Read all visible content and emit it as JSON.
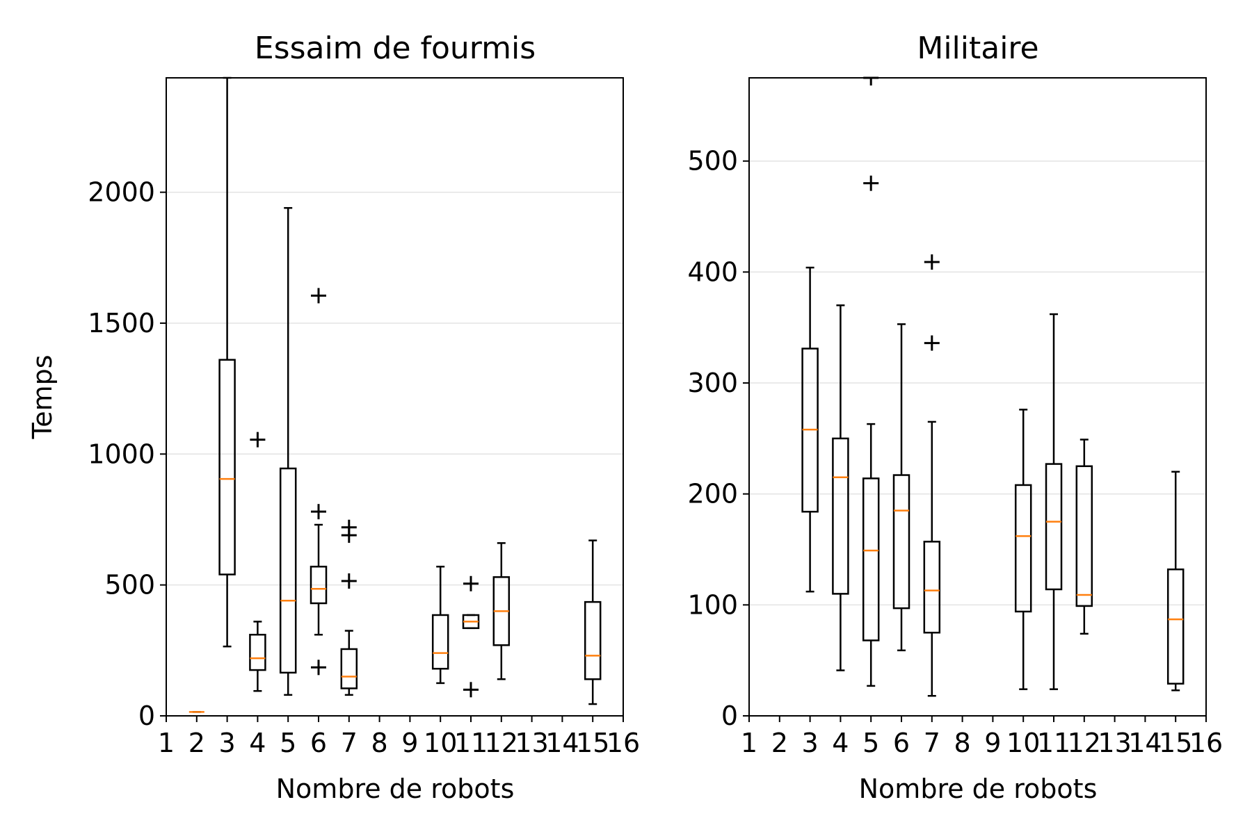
{
  "chart_data": [
    {
      "type": "box",
      "title": "Essaim de fourmis",
      "xlabel": "Nombre de robots",
      "ylabel": "Temps",
      "xlim": [
        1,
        16
      ],
      "ylim": [
        0,
        2437
      ],
      "xticks": [
        "1",
        "2",
        "3",
        "4",
        "5",
        "6",
        "7",
        "8",
        "9",
        "10",
        "11",
        "12",
        "13",
        "14",
        "15",
        "16"
      ],
      "yticks": [
        0,
        500,
        1000,
        1500,
        2000
      ],
      "grid": "y",
      "boxes": [
        {
          "x": 2,
          "q1": 15,
          "median": 15,
          "q3": 15,
          "whislo": 15,
          "whishi": 15,
          "fliers": []
        },
        {
          "x": 3,
          "q1": 540,
          "median": 905,
          "q3": 1360,
          "whislo": 265,
          "whishi": 2437,
          "fliers": []
        },
        {
          "x": 4,
          "q1": 175,
          "median": 220,
          "q3": 310,
          "whislo": 95,
          "whishi": 360,
          "fliers": [
            1055
          ]
        },
        {
          "x": 5,
          "q1": 165,
          "median": 440,
          "q3": 945,
          "whislo": 80,
          "whishi": 1940,
          "fliers": []
        },
        {
          "x": 6,
          "q1": 430,
          "median": 485,
          "q3": 570,
          "whislo": 310,
          "whishi": 730,
          "fliers": [
            1605,
            780,
            185
          ]
        },
        {
          "x": 7,
          "q1": 105,
          "median": 150,
          "q3": 255,
          "whislo": 80,
          "whishi": 325,
          "fliers": [
            720,
            690,
            515
          ]
        },
        {
          "x": 10,
          "q1": 180,
          "median": 240,
          "q3": 385,
          "whislo": 125,
          "whishi": 570,
          "fliers": []
        },
        {
          "x": 11,
          "q1": 335,
          "median": 360,
          "q3": 385,
          "whislo": 335,
          "whishi": 385,
          "fliers": [
            505,
            100
          ]
        },
        {
          "x": 12,
          "q1": 270,
          "median": 400,
          "q3": 530,
          "whislo": 140,
          "whishi": 660,
          "fliers": []
        },
        {
          "x": 15,
          "q1": 140,
          "median": 230,
          "q3": 435,
          "whislo": 45,
          "whishi": 670,
          "fliers": []
        }
      ]
    },
    {
      "type": "box",
      "title": "Militaire",
      "xlabel": "Nombre de robots",
      "ylabel": "",
      "xlim": [
        1,
        16
      ],
      "ylim": [
        0,
        575
      ],
      "xticks": [
        "1",
        "2",
        "3",
        "4",
        "5",
        "6",
        "7",
        "8",
        "9",
        "10",
        "11",
        "12",
        "13",
        "14",
        "15",
        "16"
      ],
      "yticks": [
        0,
        100,
        200,
        300,
        400,
        500
      ],
      "grid": "y",
      "boxes": [
        {
          "x": 3,
          "q1": 184,
          "median": 258,
          "q3": 331,
          "whislo": 112,
          "whishi": 404,
          "fliers": []
        },
        {
          "x": 4,
          "q1": 110,
          "median": 215,
          "q3": 250,
          "whislo": 41,
          "whishi": 370,
          "fliers": []
        },
        {
          "x": 5,
          "q1": 68,
          "median": 149,
          "q3": 214,
          "whislo": 27,
          "whishi": 263,
          "fliers": [
            480,
            575
          ]
        },
        {
          "x": 6,
          "q1": 97,
          "median": 185,
          "q3": 217,
          "whislo": 59,
          "whishi": 353,
          "fliers": []
        },
        {
          "x": 7,
          "q1": 75,
          "median": 113,
          "q3": 157,
          "whislo": 18,
          "whishi": 265,
          "fliers": [
            409,
            336
          ]
        },
        {
          "x": 10,
          "q1": 94,
          "median": 162,
          "q3": 208,
          "whislo": 24,
          "whishi": 276,
          "fliers": []
        },
        {
          "x": 11,
          "q1": 114,
          "median": 175,
          "q3": 227,
          "whislo": 24,
          "whishi": 362,
          "fliers": []
        },
        {
          "x": 12,
          "q1": 99,
          "median": 109,
          "q3": 225,
          "whislo": 74,
          "whishi": 249,
          "fliers": []
        },
        {
          "x": 15,
          "q1": 29,
          "median": 87,
          "q3": 132,
          "whislo": 23,
          "whishi": 220,
          "fliers": []
        }
      ]
    }
  ]
}
